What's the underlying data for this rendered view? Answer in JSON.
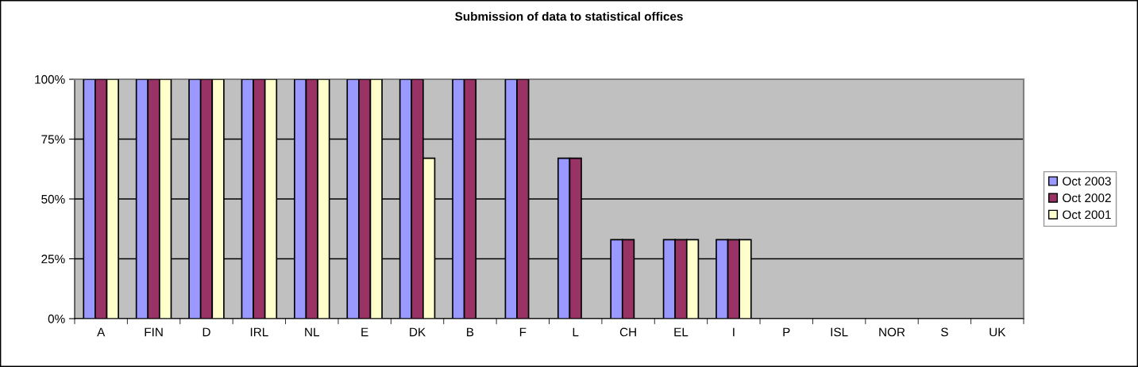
{
  "chart_data": {
    "type": "bar",
    "title": "Submission of data to statistical offices",
    "categories": [
      "A",
      "FIN",
      "D",
      "IRL",
      "NL",
      "E",
      "DK",
      "B",
      "F",
      "L",
      "CH",
      "EL",
      "I",
      "P",
      "ISL",
      "NOR",
      "S",
      "UK"
    ],
    "series": [
      {
        "name": "Oct 2003",
        "color": "#9999ff",
        "values": [
          100,
          100,
          100,
          100,
          100,
          100,
          100,
          100,
          100,
          67,
          33,
          33,
          33,
          null,
          null,
          null,
          null,
          null
        ]
      },
      {
        "name": "Oct 2002",
        "color": "#993366",
        "values": [
          100,
          100,
          100,
          100,
          100,
          100,
          100,
          100,
          100,
          67,
          33,
          33,
          33,
          null,
          null,
          null,
          null,
          null
        ]
      },
      {
        "name": "Oct 2001",
        "color": "#ffffcc",
        "values": [
          100,
          100,
          100,
          100,
          100,
          100,
          67,
          null,
          null,
          null,
          null,
          33,
          33,
          null,
          null,
          null,
          null,
          null
        ]
      }
    ],
    "ylim": [
      0,
      100
    ],
    "yticks": [
      {
        "value": 0,
        "label": "0%"
      },
      {
        "value": 25,
        "label": "25%"
      },
      {
        "value": 50,
        "label": "50%"
      },
      {
        "value": 75,
        "label": "75%"
      },
      {
        "value": 100,
        "label": "100%"
      }
    ],
    "grid": "y",
    "legend": "right"
  }
}
